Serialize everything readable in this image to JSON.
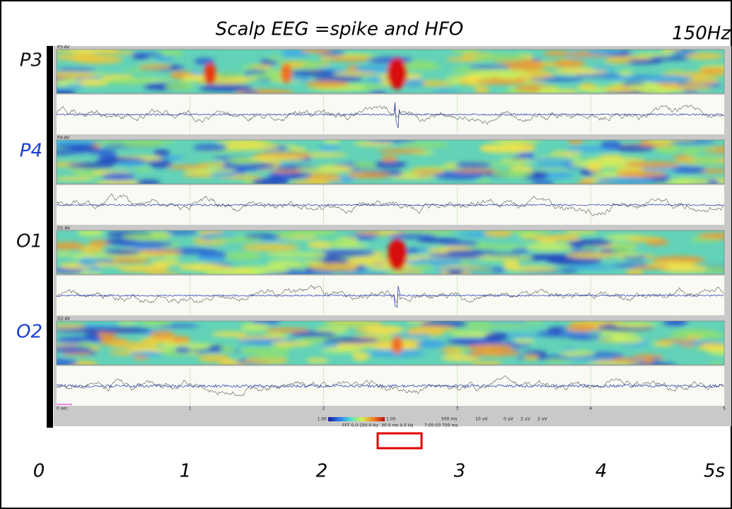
{
  "title": "Scalp EEG =spike and HFO",
  "frequency_label": "150Hz",
  "channels": [
    {
      "label": "P3",
      "trace_label": "P3-AV",
      "color": "#111111"
    },
    {
      "label": "P4",
      "trace_label": "P4-AV",
      "color": "#1a3fd6"
    },
    {
      "label": "O1",
      "trace_label": "O1-AV",
      "color": "#111111"
    },
    {
      "label": "O2",
      "trace_label": "O2-AV",
      "color": "#1a3fd6"
    }
  ],
  "time_axis": [
    "0",
    "1",
    "2",
    "3",
    "4",
    "5s"
  ],
  "screen_time_ticks": [
    "0 sec",
    "1",
    "2",
    "3",
    "4",
    "5"
  ],
  "status_bar": {
    "scale_min": "1.00",
    "scale_max": "1.00",
    "fft_range": "FFT 0.0-150.0 Hz",
    "window": "30.0 ms  4.0 Hz",
    "clock": "7:05:03 750 ms",
    "timebase": "500 ms",
    "gain": "10 uV",
    "markers": [
      "0 uV",
      "2 uV",
      "2 uV"
    ]
  }
}
